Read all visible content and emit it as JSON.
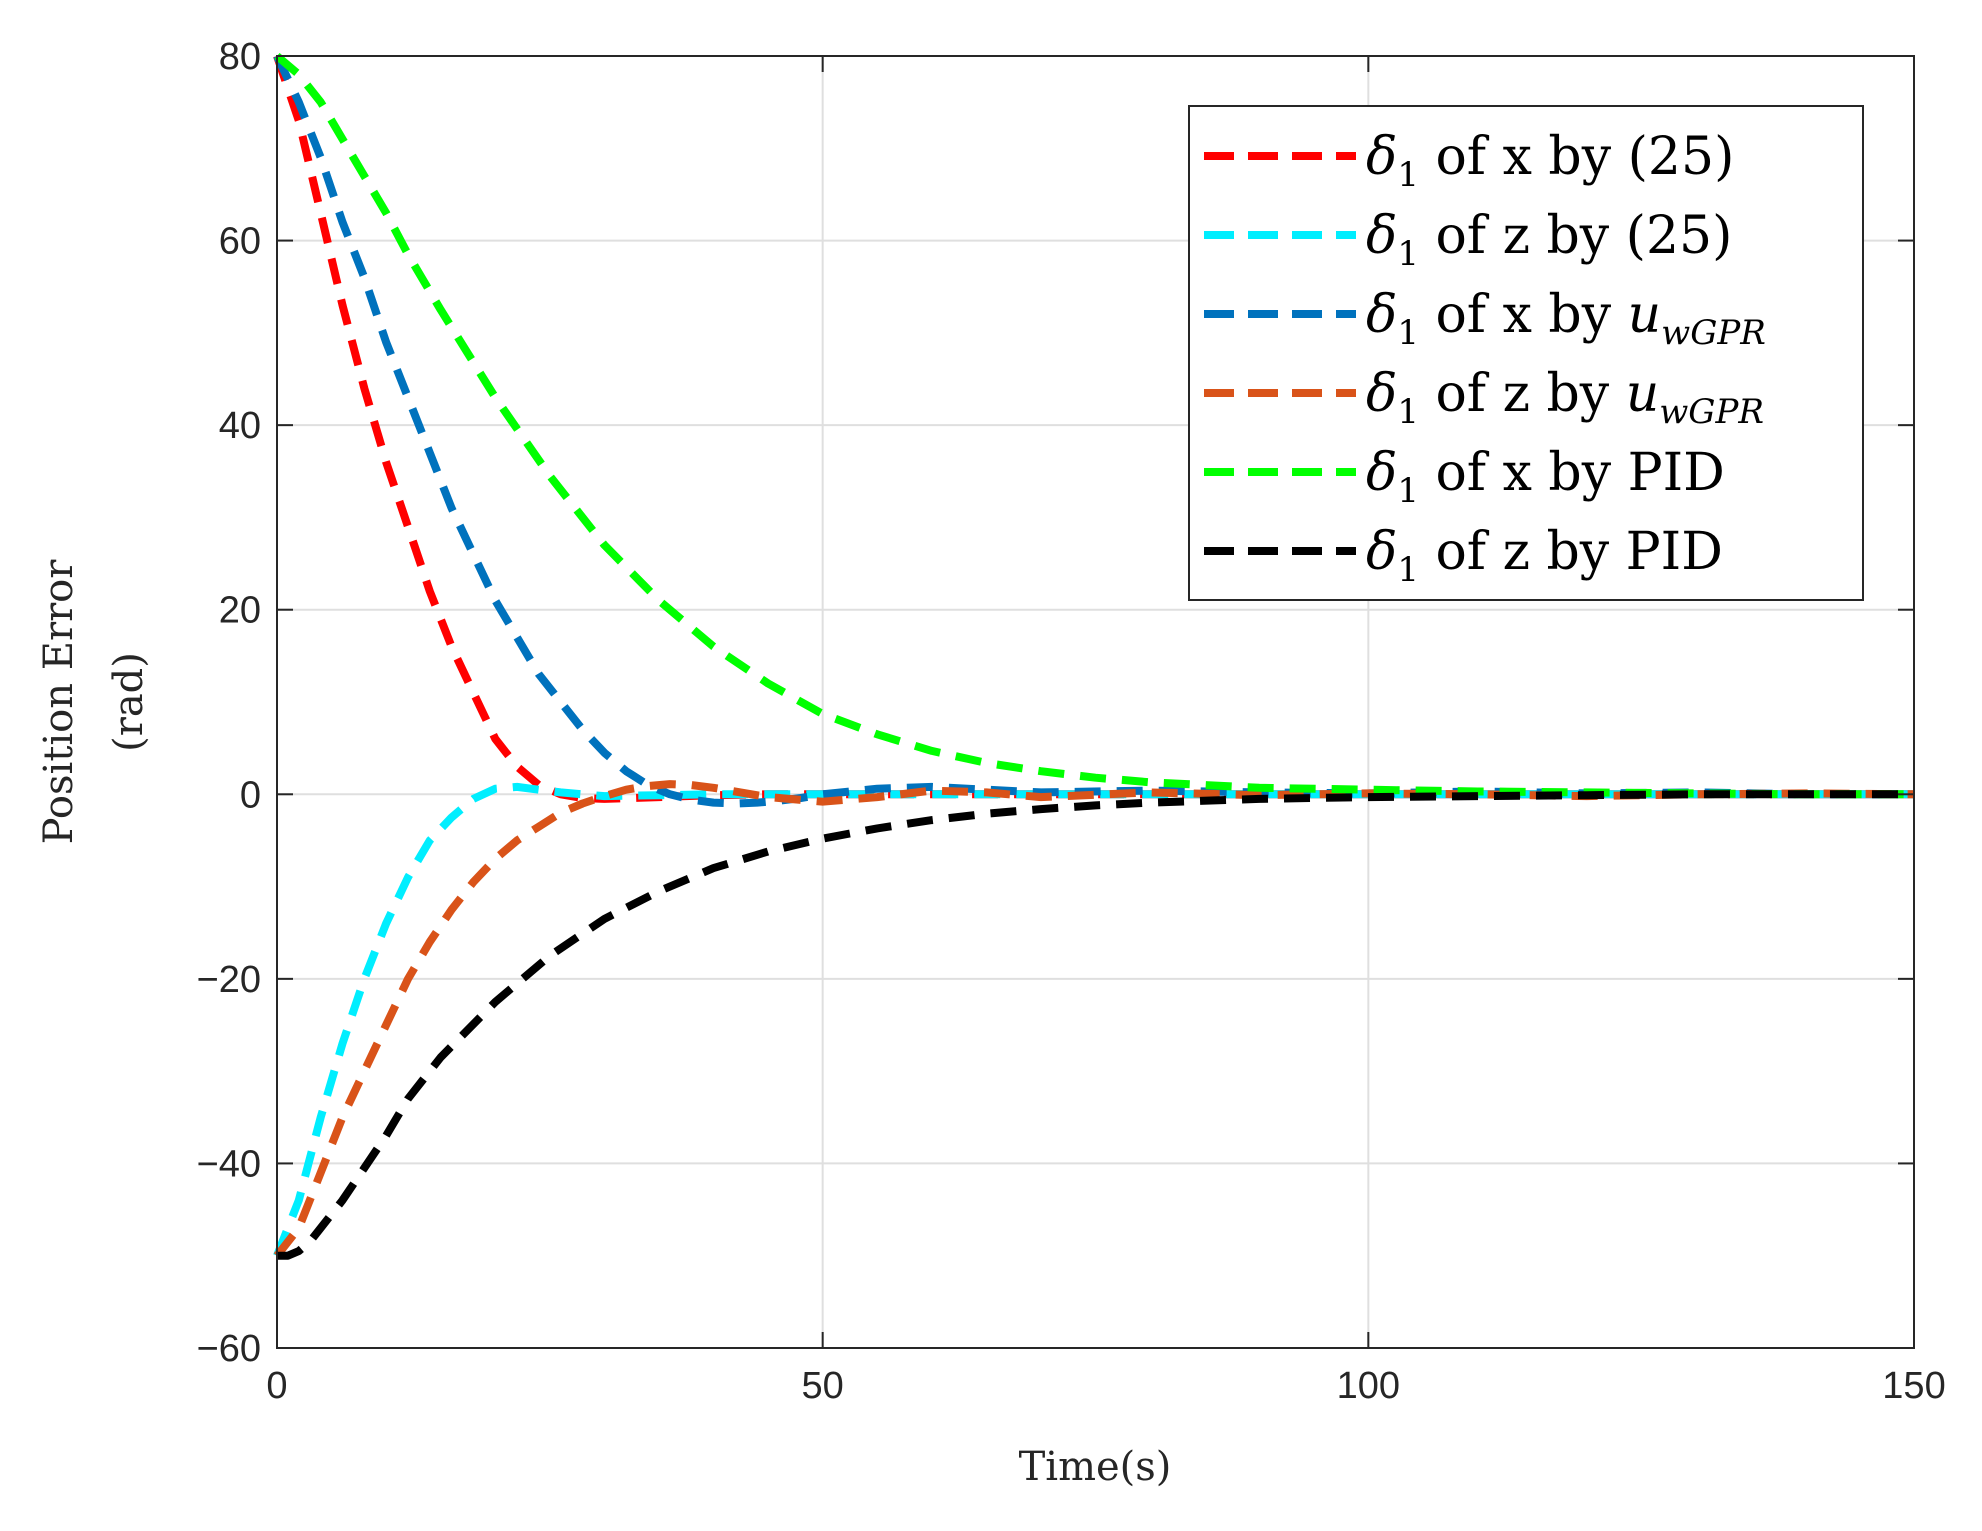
{
  "chart_data": {
    "type": "line",
    "title": "",
    "xlabel": "Time(s)",
    "ylabel_lines": [
      "Position Error",
      "(rad)"
    ],
    "xlim": [
      0,
      150
    ],
    "ylim": [
      -60,
      80
    ],
    "xticks": [
      0,
      50,
      100,
      150
    ],
    "xtick_labels": [
      "0",
      "50",
      "100",
      "150"
    ],
    "yticks": [
      80,
      60,
      40,
      20,
      0,
      -20,
      -40,
      -60
    ],
    "ytick_labels": [
      "80",
      "60",
      "40",
      "20",
      "0",
      "−20",
      "−40",
      "−60"
    ],
    "grid": true,
    "legend_position": "top-right",
    "series": [
      {
        "name": "delta1-x-by-25",
        "label": {
          "sym": "δ",
          "sub": "1",
          "text": " of x by (25)",
          "italic_extra": "",
          "italic_sub": ""
        },
        "color": "#ff0000",
        "x": [
          0,
          2,
          4,
          6,
          8,
          10,
          12,
          14,
          16,
          18,
          20,
          22,
          24,
          26,
          28,
          30,
          35,
          40,
          45,
          50,
          60,
          80,
          100,
          150
        ],
        "y": [
          80,
          73,
          63,
          53,
          44,
          36,
          29,
          22,
          16,
          11,
          6,
          3,
          1,
          0,
          -0.4,
          -0.5,
          -0.3,
          -0.1,
          0,
          0,
          0,
          0,
          0,
          0
        ]
      },
      {
        "name": "delta1-z-by-25",
        "label": {
          "sym": "δ",
          "sub": "1",
          "text": " of z by (25)",
          "italic_extra": "",
          "italic_sub": ""
        },
        "color": "#00eeff",
        "x": [
          0,
          2,
          4,
          6,
          8,
          10,
          12,
          14,
          16,
          18,
          20,
          22,
          24,
          26,
          28,
          30,
          35,
          40,
          45,
          50,
          60,
          80,
          100,
          150
        ],
        "y": [
          -50,
          -44,
          -35,
          -27,
          -20,
          -14,
          -9,
          -5,
          -2.5,
          -0.5,
          0.6,
          0.8,
          0.5,
          0.2,
          0,
          -0.2,
          -0.1,
          0,
          0,
          0,
          0,
          0,
          0,
          0
        ]
      },
      {
        "name": "delta1-x-by-uwgpr",
        "label": {
          "sym": "δ",
          "sub": "1",
          "text": " of x by ",
          "italic_extra": "u",
          "italic_sub": "wGPR"
        },
        "color": "#0072bd",
        "x": [
          0,
          2,
          4,
          6,
          8,
          10,
          12,
          14,
          16,
          18,
          20,
          22,
          24,
          26,
          28,
          30,
          32,
          34,
          36,
          38,
          40,
          42,
          44,
          46,
          48,
          50,
          55,
          60,
          65,
          70,
          80,
          90,
          100,
          110,
          120,
          130,
          140,
          150
        ],
        "y": [
          80,
          75,
          69,
          62,
          56,
          49,
          43,
          37,
          31,
          26,
          21,
          17,
          13,
          10,
          7,
          4.5,
          2.5,
          1,
          0,
          -0.6,
          -0.9,
          -1,
          -0.9,
          -0.7,
          -0.4,
          0,
          0.6,
          0.8,
          0.5,
          0.2,
          0.4,
          0.2,
          0.1,
          0.3,
          0.1,
          0.2,
          0,
          0
        ]
      },
      {
        "name": "delta1-z-by-uwgpr",
        "label": {
          "sym": "δ",
          "sub": "1",
          "text": " of z by ",
          "italic_extra": "u",
          "italic_sub": "wGPR"
        },
        "color": "#d95319",
        "x": [
          0,
          2,
          4,
          6,
          8,
          10,
          12,
          14,
          16,
          18,
          20,
          22,
          24,
          26,
          28,
          30,
          32,
          34,
          36,
          38,
          40,
          45,
          50,
          55,
          60,
          65,
          70,
          80,
          90,
          100,
          110,
          120,
          130,
          140,
          150
        ],
        "y": [
          -50,
          -47,
          -41,
          -35,
          -30,
          -25,
          -20,
          -16,
          -12.5,
          -9.5,
          -7,
          -5,
          -3.5,
          -2,
          -1,
          -0.2,
          0.5,
          0.9,
          1.1,
          1,
          0.7,
          -0.3,
          -0.8,
          -0.3,
          0.4,
          0.2,
          -0.3,
          0.2,
          -0.1,
          0.1,
          0,
          -0.2,
          0,
          0.1,
          0
        ]
      },
      {
        "name": "delta1-x-by-pid",
        "label": {
          "sym": "δ",
          "sub": "1",
          "text": " of x by PID",
          "italic_extra": "",
          "italic_sub": ""
        },
        "color": "#00ff00",
        "x": [
          0,
          2,
          4,
          6,
          8,
          10,
          12,
          15,
          20,
          25,
          30,
          35,
          40,
          45,
          50,
          55,
          60,
          65,
          70,
          75,
          80,
          90,
          100,
          110,
          120,
          130,
          140,
          150
        ],
        "y": [
          80,
          78,
          75,
          71,
          67,
          63,
          58.5,
          52.5,
          43,
          34.5,
          27,
          21,
          16,
          12,
          8.7,
          6.5,
          4.7,
          3.4,
          2.5,
          1.8,
          1.3,
          0.7,
          0.5,
          0.3,
          0.2,
          0.1,
          0,
          0
        ]
      },
      {
        "name": "delta1-z-by-pid",
        "label": {
          "sym": "δ",
          "sub": "1",
          "text": " of z by PID",
          "italic_extra": "",
          "italic_sub": ""
        },
        "color": "#000000",
        "x": [
          0,
          1,
          2,
          3,
          4,
          6,
          8,
          10,
          12,
          15,
          20,
          25,
          30,
          35,
          40,
          45,
          50,
          55,
          60,
          65,
          70,
          75,
          80,
          90,
          100,
          110,
          120,
          130,
          140,
          150
        ],
        "y": [
          -50,
          -50,
          -49.5,
          -48.5,
          -47,
          -44,
          -40.5,
          -37,
          -33,
          -28.5,
          -22.5,
          -17.5,
          -13.5,
          -10.5,
          -8,
          -6.2,
          -4.8,
          -3.7,
          -2.8,
          -2.1,
          -1.6,
          -1.2,
          -0.9,
          -0.5,
          -0.3,
          -0.2,
          -0.1,
          0,
          0,
          0
        ]
      }
    ]
  }
}
